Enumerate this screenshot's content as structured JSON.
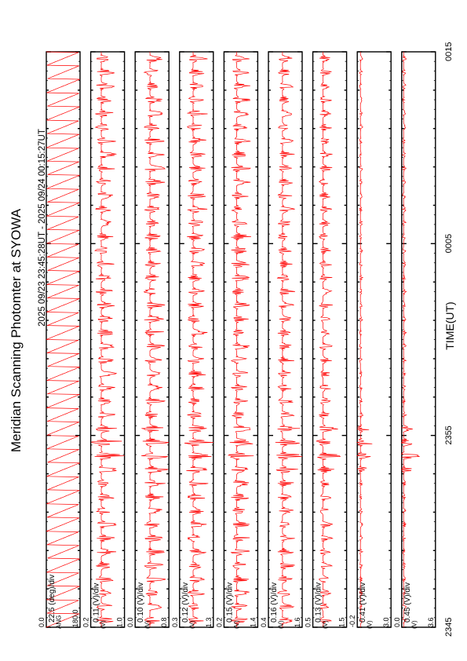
{
  "title": "Meridian Scanning Photomter at SYOWA",
  "subtitle": "2025 09/23 23:45:28UT - 2025 09/24 00:15:27UT",
  "xlabel": "TIME(UT)",
  "x_tick_labels": [
    "2345",
    "2355",
    "0005",
    "0015"
  ],
  "colors": {
    "trace": "#ff0000",
    "axis": "#000000",
    "background": "#ffffff"
  },
  "chart_data": {
    "type": "line",
    "title": "Meridian Scanning Photomter at SYOWA",
    "subtitle": "2025 09/23 23:45:28UT - 2025 09/24 00:15:27UT",
    "xlabel": "TIME(UT)",
    "x_range": [
      "23:45:28",
      "00:15:27"
    ],
    "x_ticks": [
      "2345",
      "2355",
      "0005",
      "0015"
    ],
    "orientation": "rotated 90 degrees, time increasing upward",
    "panels": [
      {
        "name": "angle",
        "scale_label": "22.5 (deg)/div",
        "unit_label": "ANG",
        "ylim": [
          0.0,
          180.0
        ],
        "tick_labels": [
          "0.0",
          "180.0"
        ],
        "waveform": "sawtooth scan",
        "scan_cycles": 42
      },
      {
        "name": "ch1",
        "scale_label": "0.11 (V)/div",
        "unit_label": "(V)",
        "ylim": [
          0.2,
          1.0
        ],
        "tick_labels": [
          "0.2",
          "1.0"
        ],
        "baseline": 0.45,
        "amplitude": 0.25,
        "burst_time": "23:55",
        "burst_amplitude": 0.35
      },
      {
        "name": "ch2",
        "scale_label": "0.10 (V)/div",
        "unit_label": "(V)",
        "ylim": [
          0.0,
          0.8
        ],
        "tick_labels": [
          "0.0",
          "0.8"
        ],
        "baseline": 0.35,
        "amplitude": 0.25,
        "burst_time": "23:55",
        "burst_amplitude": 0.3
      },
      {
        "name": "ch3",
        "scale_label": "0.12 (V)/div",
        "unit_label": "(V)",
        "ylim": [
          0.3,
          1.3
        ],
        "tick_labels": [
          "0.3",
          "1.3"
        ],
        "baseline": 0.7,
        "amplitude": 0.3,
        "burst_time": "23:55",
        "burst_amplitude": 0.4
      },
      {
        "name": "ch4",
        "scale_label": "0.15 (V)/div",
        "unit_label": "(V)",
        "ylim": [
          0.2,
          1.4
        ],
        "tick_labels": [
          "0.2",
          "1.4"
        ],
        "baseline": 0.65,
        "amplitude": 0.35,
        "burst_time": "23:55",
        "burst_amplitude": 0.5
      },
      {
        "name": "ch5",
        "scale_label": "0.16 (V)/div",
        "unit_label": "(V)",
        "ylim": [
          0.4,
          1.6
        ],
        "tick_labels": [
          "0.4",
          "1.6"
        ],
        "baseline": 0.9,
        "amplitude": 0.3,
        "burst_time": "23:55",
        "burst_amplitude": 0.5
      },
      {
        "name": "ch6",
        "scale_label": "0.13 (V)/div",
        "unit_label": "(V)",
        "ylim": [
          0.5,
          1.5
        ],
        "tick_labels": [
          "0.5",
          "1.5"
        ],
        "baseline": 0.8,
        "amplitude": 0.2,
        "burst_time": "23:55",
        "burst_amplitude": 0.4
      },
      {
        "name": "ch7",
        "scale_label": "0.41 (V)/div",
        "unit_label": "(V)",
        "ylim": [
          -0.2,
          3.0
        ],
        "tick_labels": [
          "-0.2",
          "3.0"
        ],
        "baseline": 0.1,
        "amplitude": 0.15,
        "burst_time": "23:55",
        "burst_amplitude": 1.6
      },
      {
        "name": "ch8",
        "scale_label": "0.45 (V)/div",
        "unit_label": "(V)",
        "ylim": [
          0.0,
          3.6
        ],
        "tick_labels": [
          "0.0",
          "3.6"
        ],
        "baseline": 0.2,
        "amplitude": 0.2,
        "burst_time": "23:55",
        "burst_amplitude": 1.7
      }
    ]
  }
}
